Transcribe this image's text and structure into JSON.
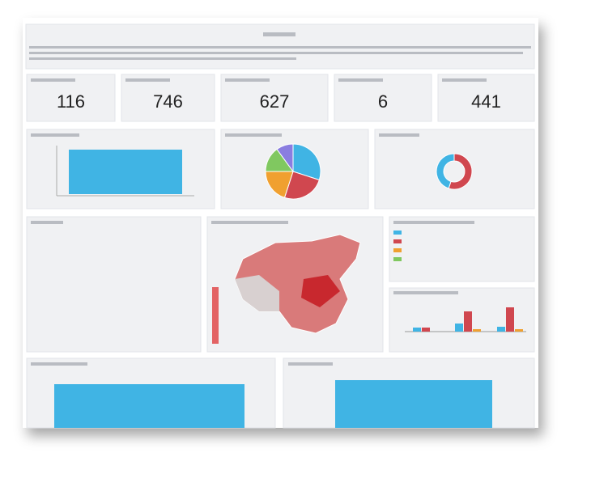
{
  "kpis": [
    {
      "value": 116
    },
    {
      "value": 746
    },
    {
      "value": 627
    },
    {
      "value": 6
    },
    {
      "value": 441
    }
  ],
  "pie": {
    "type": "pie",
    "values": [
      30,
      25,
      20,
      15,
      10
    ],
    "colors": [
      "#40b4e4",
      "#d0474f",
      "#f0a030",
      "#80c860",
      "#8a7de0"
    ]
  },
  "donut": {
    "type": "pie",
    "values": [
      55,
      45
    ],
    "colors": [
      "#d0474f",
      "#40b4e4"
    ]
  },
  "grouped": {
    "type": "bar",
    "ylim": [
      0,
      40
    ],
    "series": [
      {
        "color": "#40b4e4",
        "values": [
          5,
          10,
          6
        ]
      },
      {
        "color": "#d0474f",
        "values": [
          5,
          25,
          30
        ]
      },
      {
        "color": "#f0a030",
        "values": [
          0,
          3,
          3
        ]
      }
    ]
  }
}
